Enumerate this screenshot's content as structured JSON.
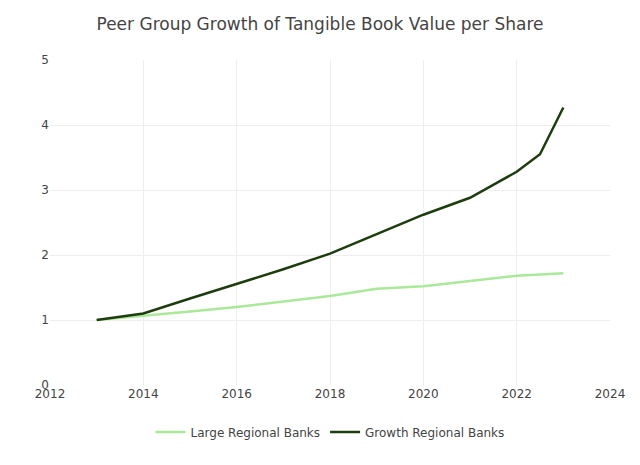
{
  "chart_data": {
    "type": "line",
    "title": "Peer Group Growth of Tangible Book Value per Share",
    "xlim": [
      2012,
      2024
    ],
    "ylim": [
      0,
      5
    ],
    "xticks": [
      2012,
      2014,
      2016,
      2018,
      2020,
      2022,
      2024
    ],
    "yticks": [
      0,
      1,
      2,
      3,
      4,
      5
    ],
    "grid": true,
    "legend": "bottom",
    "series": [
      {
        "name": "Large Regional Banks",
        "color": "#aae89a",
        "x": [
          2013,
          2014,
          2015,
          2016,
          2017,
          2018,
          2019,
          2019.5,
          2020,
          2021,
          2022,
          2023
        ],
        "values": [
          1.0,
          1.06,
          1.13,
          1.2,
          1.28,
          1.37,
          1.48,
          1.5,
          1.52,
          1.6,
          1.68,
          1.72
        ]
      },
      {
        "name": "Growth Regional Banks",
        "color": "#1e3d0f",
        "x": [
          2013,
          2014,
          2015,
          2016,
          2017,
          2018,
          2019,
          2019.5,
          2020,
          2021,
          2022,
          2022.5,
          2023
        ],
        "values": [
          1.0,
          1.1,
          1.33,
          1.55,
          1.78,
          2.02,
          2.32,
          2.46,
          2.62,
          2.88,
          3.28,
          3.55,
          4.27
        ]
      }
    ]
  }
}
